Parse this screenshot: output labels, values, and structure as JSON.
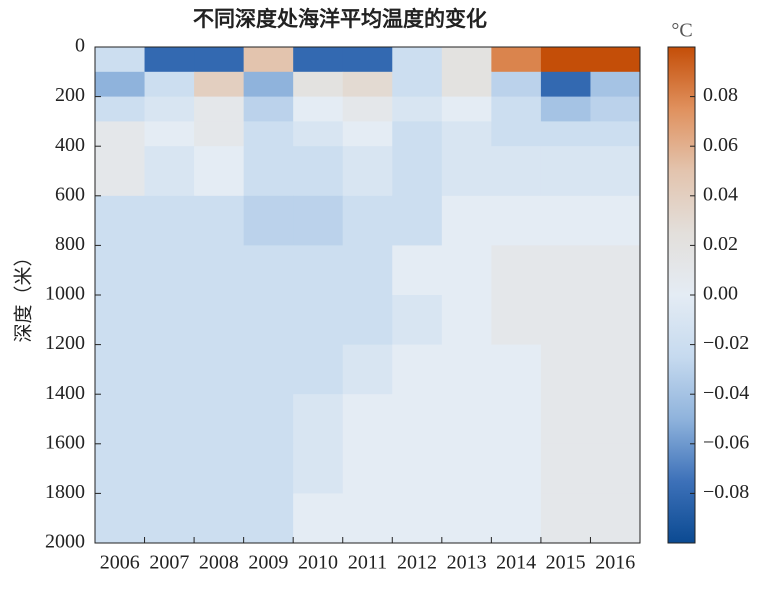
{
  "chart_data": {
    "type": "heatmap",
    "title": "不同深度处海洋平均温度的变化",
    "y_label": "深度（米）",
    "colorbar_label": "°C",
    "categories": [
      "2006",
      "2007",
      "2008",
      "2009",
      "2010",
      "2011",
      "2012",
      "2013",
      "2014",
      "2015",
      "2016"
    ],
    "y_bins": [
      0,
      100,
      200,
      300,
      400,
      600,
      800,
      1000,
      1200,
      1400,
      1600,
      1800,
      2000
    ],
    "ylim": [
      0,
      2000
    ],
    "yticks": [
      0,
      200,
      400,
      600,
      800,
      1000,
      1200,
      1400,
      1600,
      1800,
      2000
    ],
    "y_inverted": true,
    "clim": [
      -0.1,
      0.1
    ],
    "cticks": [
      {
        "value": -0.08,
        "label": "−0.08"
      },
      {
        "value": -0.06,
        "label": "−0.06"
      },
      {
        "value": -0.04,
        "label": "−0.04"
      },
      {
        "value": -0.02,
        "label": "−0.02"
      },
      {
        "value": 0,
        "label": "0.00"
      },
      {
        "value": 0.02,
        "label": "0.02"
      },
      {
        "value": 0.04,
        "label": "0.04"
      },
      {
        "value": 0.06,
        "label": "0.06"
      },
      {
        "value": 0.08,
        "label": "0.08"
      }
    ],
    "colormap": [
      "#0b4a92",
      "#3d71b9",
      "#8fb3dc",
      "#c6daef",
      "#e4ecf4",
      "#e3dfdb",
      "#e3c4ae",
      "#e0915e",
      "#c44e08"
    ],
    "z": [
      [
        -0.02,
        -0.08,
        -0.08,
        0.05,
        -0.08,
        -0.08,
        -0.02,
        0.02,
        0.08,
        0.1,
        0.1
      ],
      [
        -0.05,
        -0.02,
        0.04,
        -0.05,
        0.02,
        0.03,
        -0.02,
        0.02,
        -0.03,
        -0.08,
        -0.04
      ],
      [
        -0.02,
        -0.01,
        0.01,
        -0.03,
        0.0,
        0.01,
        -0.01,
        0.0,
        -0.02,
        -0.04,
        -0.03
      ],
      [
        0.01,
        0.0,
        0.01,
        -0.02,
        -0.01,
        0.0,
        -0.02,
        -0.01,
        -0.02,
        -0.02,
        -0.02
      ],
      [
        0.01,
        -0.01,
        0.0,
        -0.02,
        -0.02,
        -0.01,
        -0.02,
        -0.01,
        -0.01,
        -0.01,
        -0.01
      ],
      [
        -0.02,
        -0.02,
        -0.02,
        -0.03,
        -0.03,
        -0.02,
        -0.02,
        0.0,
        0.0,
        0.0,
        0.0
      ],
      [
        -0.02,
        -0.02,
        -0.02,
        -0.02,
        -0.02,
        -0.02,
        0.0,
        0.0,
        0.01,
        0.01,
        0.01
      ],
      [
        -0.02,
        -0.02,
        -0.02,
        -0.02,
        -0.02,
        -0.02,
        -0.01,
        0.0,
        0.01,
        0.01,
        0.01
      ],
      [
        -0.02,
        -0.02,
        -0.02,
        -0.02,
        -0.02,
        -0.01,
        0.0,
        0.0,
        0.0,
        0.01,
        0.01
      ],
      [
        -0.02,
        -0.02,
        -0.02,
        -0.02,
        -0.01,
        0.0,
        0.0,
        0.0,
        0.0,
        0.01,
        0.01
      ],
      [
        -0.02,
        -0.02,
        -0.02,
        -0.02,
        -0.01,
        0.0,
        0.0,
        0.0,
        0.0,
        0.01,
        0.01
      ],
      [
        -0.02,
        -0.02,
        -0.02,
        -0.02,
        0.0,
        0.0,
        0.0,
        0.0,
        0.0,
        0.01,
        0.01
      ]
    ]
  }
}
